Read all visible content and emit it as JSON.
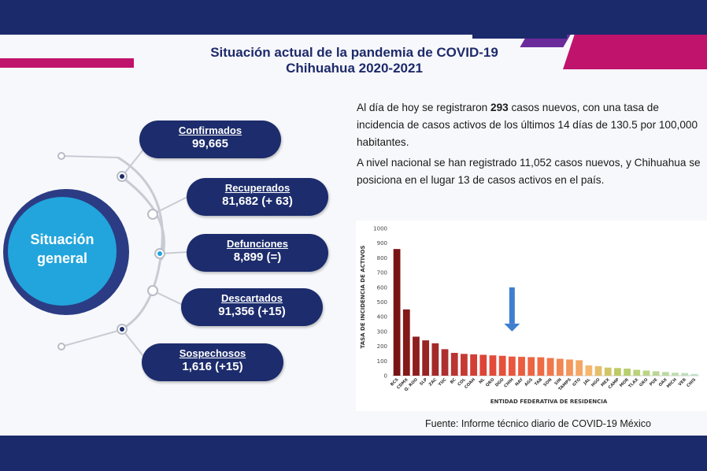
{
  "header": {
    "title_line1": "Situación actual de la pandemia de COVID-19",
    "title_line2": "Chihuahua 2020-2021"
  },
  "hub": {
    "label_line1": "Situación",
    "label_line2": "general"
  },
  "stats": [
    {
      "label": "Confirmados",
      "value": "99,665"
    },
    {
      "label": "Recuperados",
      "value": "81,682 (+ 63)"
    },
    {
      "label": "Defunciones",
      "value": "8,899 (=)"
    },
    {
      "label": "Descartados",
      "value": "91,356 (+15)"
    },
    {
      "label": "Sospechosos",
      "value": "1,616 (+15)"
    }
  ],
  "summary": {
    "p1_before": "Al día de hoy se registraron ",
    "p1_bold": "293",
    "p1_after": " casos nuevos, con una tasa de incidencia de casos activos de los últimos 14 días de 130.5 por 100,000 habitantes.",
    "p2": "A nivel nacional se han registrado 11,052 casos nuevos, y Chihuahua se posiciona en el lugar 13 de casos activos en el país."
  },
  "source": "Fuente: Informe técnico diario de COVID-19 México",
  "colors": {
    "navy": "#1b2a6b",
    "magenta": "#c0136c",
    "cyan": "#22a5dc",
    "arrow": "#3f7fd0"
  },
  "chart_data": {
    "type": "bar",
    "ylabel": "TASA DE INCIDENCIA DE ACTIVOS",
    "xlabel": "ENTIDAD FEDERATIVA DE RESIDENCIA",
    "ylim": [
      0,
      1000
    ],
    "yticks": [
      0,
      100,
      200,
      300,
      400,
      500,
      600,
      700,
      800,
      900,
      1000
    ],
    "categories": [
      "BCS",
      "CDMX",
      "Q. ROO",
      "SLP",
      "ZAC",
      "YUC",
      "BC",
      "COL",
      "COAH",
      "NL",
      "QRO",
      "DGO",
      "CHIH",
      "NAY",
      "AGS",
      "TAB",
      "SON",
      "SIN",
      "TAMPS",
      "GTO",
      "JAL",
      "HGO",
      "MEX",
      "CAMP",
      "MOR",
      "TLAX",
      "GRO",
      "PUE",
      "OAX",
      "MICH",
      "VER",
      "CHIS"
    ],
    "values": [
      860,
      450,
      265,
      240,
      220,
      180,
      155,
      148,
      145,
      142,
      138,
      135,
      130,
      128,
      126,
      125,
      120,
      115,
      110,
      105,
      70,
      65,
      55,
      52,
      48,
      40,
      35,
      30,
      25,
      20,
      18,
      12
    ],
    "highlight": "CHIH",
    "grid": false,
    "legend": "none"
  }
}
